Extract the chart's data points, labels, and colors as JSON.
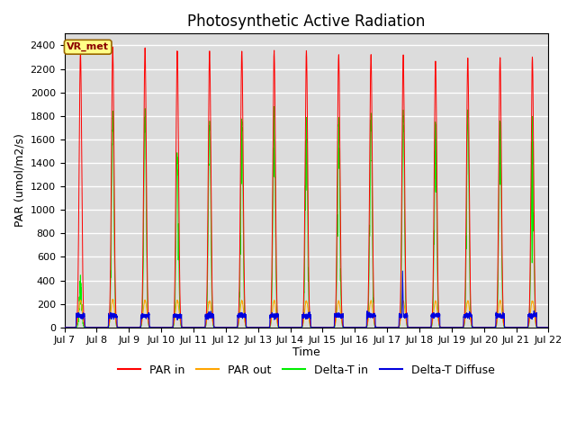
{
  "title": "Photosynthetic Active Radiation",
  "ylabel": "PAR (umol/m2/s)",
  "xlabel": "Time",
  "annotation": "VR_met",
  "ylim": [
    0,
    2500
  ],
  "xlim_days": [
    7,
    22
  ],
  "background_color": "#dcdcdc",
  "grid_color": "white",
  "series_colors": {
    "par_in": "#ff0000",
    "par_out": "#ffa500",
    "delta_t_in": "#00ee00",
    "delta_t_diffuse": "#0000dd"
  },
  "legend_labels": [
    "PAR in",
    "PAR out",
    "Delta-T in",
    "Delta-T Diffuse"
  ],
  "tick_labels": [
    "Jul 7",
    "Jul 8",
    "Jul 9",
    "Jul 10",
    "Jul 11",
    "Jul 12",
    "Jul 13",
    "Jul 14",
    "Jul 15",
    "Jul 16",
    "Jul 17",
    "Jul 18",
    "Jul 19",
    "Jul 20",
    "Jul 21",
    "Jul 22"
  ],
  "n_days": 15,
  "points_per_day": 288,
  "par_in_peaks": [
    2340,
    2380,
    2370,
    2360,
    2350,
    2360,
    2345,
    2350,
    2325,
    2320,
    2310,
    2260,
    2290,
    2295,
    2300
  ],
  "par_out_peaks": [
    230,
    235,
    230,
    230,
    225,
    225,
    225,
    225,
    225,
    225,
    225,
    225,
    225,
    225,
    225
  ],
  "delta_t_in_peaks": [
    370,
    1800,
    1800,
    1450,
    1760,
    1760,
    1760,
    1780,
    1760,
    1790,
    1800,
    1760,
    1780,
    1780,
    1780
  ],
  "delta_t_diffuse_peak": 100,
  "blue_spike_day": 10,
  "blue_spike_value": 480,
  "title_fontsize": 12,
  "label_fontsize": 9,
  "tick_fontsize": 8,
  "legend_fontsize": 9
}
